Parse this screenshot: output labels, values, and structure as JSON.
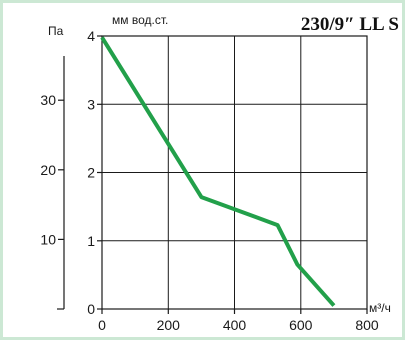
{
  "chart_data": {
    "type": "line",
    "title": "230/9″ LL S",
    "x": [
      0,
      300,
      530,
      590,
      700
    ],
    "series": [
      {
        "values": [
          3.98,
          1.64,
          1.23,
          0.65,
          0.05
        ]
      }
    ],
    "xlim": [
      0,
      800
    ],
    "xticks": [
      "0",
      "200",
      "400",
      "600",
      "800"
    ],
    "xunit": "м³/ч",
    "ylim": [
      0,
      4
    ],
    "yticks": [
      "0",
      "1",
      "2",
      "3",
      "4"
    ],
    "yunit": "мм вод.ст.",
    "y2ticks": [
      "10",
      "20",
      "30"
    ],
    "y2unit": "Па",
    "grid": true,
    "colors": {
      "line": "#22a04a",
      "frame": "#cce8d4",
      "grid": "#1a1a1a",
      "axis": "#1a1a1a"
    }
  }
}
